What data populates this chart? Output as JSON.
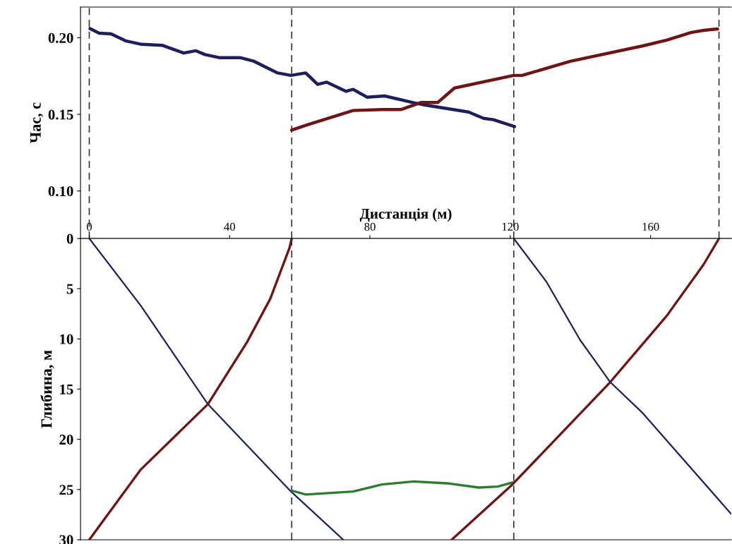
{
  "chart_data": [
    {
      "type": "line",
      "ylabel": "Час, с",
      "xlim": [
        -2.5,
        183
      ],
      "ylim": [
        0.069,
        0.22
      ],
      "yticks": [
        {
          "value": 0.1,
          "label": "0.10"
        },
        0.15,
        {
          "value": 0.2,
          "label": "0.20"
        }
      ],
      "tick_labels": "y",
      "grid": false,
      "legend": false,
      "series": [
        {
          "color": "#1c1f5a",
          "x": [
            0.2,
            2.8,
            6.2,
            10.3,
            14.9,
            20.9,
            26.9,
            30.4,
            33,
            37,
            43,
            47,
            53.7,
            57.5,
            61.7,
            65.1,
            67.7,
            73.2,
            75.2,
            79.2,
            84.2,
            92.5,
            95.9,
            108.1,
            112.4,
            115.2,
            121.2
          ],
          "values": [
            0.206,
            0.203,
            0.2025,
            0.198,
            0.1957,
            0.195,
            0.19,
            0.1915,
            0.189,
            0.187,
            0.187,
            0.1846,
            0.177,
            0.1754,
            0.177,
            0.1695,
            0.171,
            0.165,
            0.1663,
            0.1612,
            0.162,
            0.1576,
            0.156,
            0.1515,
            0.1474,
            0.1465,
            0.142
          ]
        },
        {
          "color": "#6e1414",
          "x": [
            57.7,
            61.7,
            75.2,
            83.4,
            88.8,
            94.5,
            99.3,
            104.1,
            121,
            123.4,
            137.1,
            157.8,
            164.6,
            171.5,
            175.1,
            179.1
          ],
          "values": [
            0.1397,
            0.1428,
            0.1525,
            0.1531,
            0.1531,
            0.1577,
            0.1577,
            0.1672,
            0.1754,
            0.1754,
            0.1846,
            0.1947,
            0.1984,
            0.2034,
            0.2048,
            0.2057
          ]
        }
      ],
      "ref_lines": [
        {
          "axis": "x",
          "value": 0,
          "color": "#333333",
          "line_style": "dashed"
        },
        {
          "axis": "x",
          "value": 57.7,
          "color": "#333333",
          "line_style": "dashed"
        },
        {
          "axis": "x",
          "value": 121,
          "color": "#333333",
          "line_style": "dashed"
        },
        {
          "axis": "x",
          "value": 179.5,
          "color": "#333333",
          "line_style": "dashed"
        }
      ]
    },
    {
      "type": "line",
      "xlabel": "Дистанція (м)",
      "ylabel": "Глибина, м",
      "xlim": [
        -2.5,
        183
      ],
      "xticks": [
        0,
        40,
        80,
        120,
        160
      ],
      "ylim": [
        30,
        0
      ],
      "yticks": [
        0,
        5,
        10,
        15,
        20,
        25,
        30
      ],
      "grid": false,
      "legend": false,
      "series": [
        {
          "color": "#1c1f5a",
          "x": [
            0,
            14.7,
            33.8,
            57.5,
            72.4
          ],
          "values": [
            0,
            6.7,
            16.5,
            25.2,
            30
          ]
        },
        {
          "color": "#6e1414",
          "x": [
            0,
            14.7,
            33.8,
            45,
            51.6,
            57.1,
            57.7
          ],
          "values": [
            30,
            23,
            16.5,
            10.3,
            6,
            0.9,
            0
          ]
        },
        {
          "color": "#2e7d2e",
          "x": [
            57.7,
            61.7,
            75.2,
            83.4,
            92.5,
            102.7,
            111,
            116.4,
            120.6
          ],
          "values": [
            25.1,
            25.5,
            25.2,
            24.5,
            24.2,
            24.4,
            24.8,
            24.7,
            24.3
          ]
        },
        {
          "color": "#6e1414",
          "x": [
            103.3,
            120.6,
            148.5,
            164.6,
            175.1,
            179.5
          ],
          "values": [
            30,
            24.5,
            14.3,
            7.7,
            2.6,
            0
          ]
        },
        {
          "color": "#1c1f5a",
          "x": [
            121,
            130.3,
            139.9,
            148.5,
            157.8,
            182.9
          ],
          "values": [
            0,
            4.3,
            10.1,
            14.3,
            17.4,
            27.4
          ]
        }
      ],
      "ref_lines": [
        {
          "axis": "x",
          "value": 57.7,
          "color": "#333333",
          "line_style": "dashed"
        },
        {
          "axis": "x",
          "value": 121,
          "color": "#333333",
          "line_style": "dashed"
        }
      ]
    }
  ]
}
